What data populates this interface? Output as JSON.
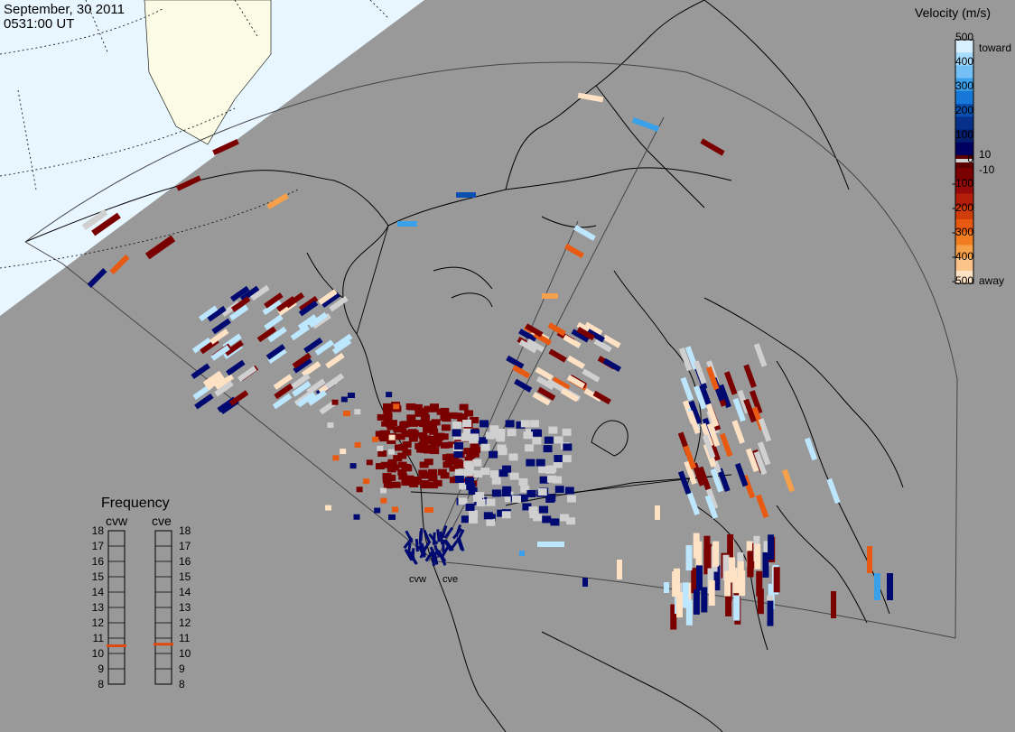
{
  "title": {
    "date": "September, 30 2011",
    "time": "0531:00 UT"
  },
  "velocity_scale": {
    "title": "Velocity (m/s)",
    "ticks": [
      "500",
      "400",
      "300",
      "200",
      "100",
      "10",
      "0",
      "-10",
      "-100",
      "-200",
      "-300",
      "-400",
      "-500"
    ],
    "toward_label": "toward",
    "away_label": "away",
    "colors": [
      "#d8f0ff",
      "#a8dcff",
      "#74c0f4",
      "#3aa0ea",
      "#1677d8",
      "#0b4fb0",
      "#07308a",
      "#061e6e",
      "#000060",
      "#5a0000",
      "#7a0000",
      "#960a0a",
      "#b41e0a",
      "#d03c0a",
      "#e85a12",
      "#f27d20",
      "#f7a04a",
      "#fbc58a",
      "#ffe1c4"
    ]
  },
  "frequency_panel": {
    "title": "Frequency",
    "radars": [
      "cvw",
      "cve"
    ],
    "scale": [
      "18",
      "17",
      "16",
      "15",
      "14",
      "13",
      "12",
      "11",
      "10",
      "9",
      "8"
    ],
    "values_mhz": [
      10.5,
      10.6
    ],
    "marker_color": "#e04a10"
  },
  "radar_labels": [
    "cvw",
    "cve"
  ],
  "map": {
    "background": "#999999",
    "daylight": "#fbfbe6",
    "twilight": "#e8f6ff",
    "coast": "#000000",
    "fov_outline": "#404040"
  }
}
